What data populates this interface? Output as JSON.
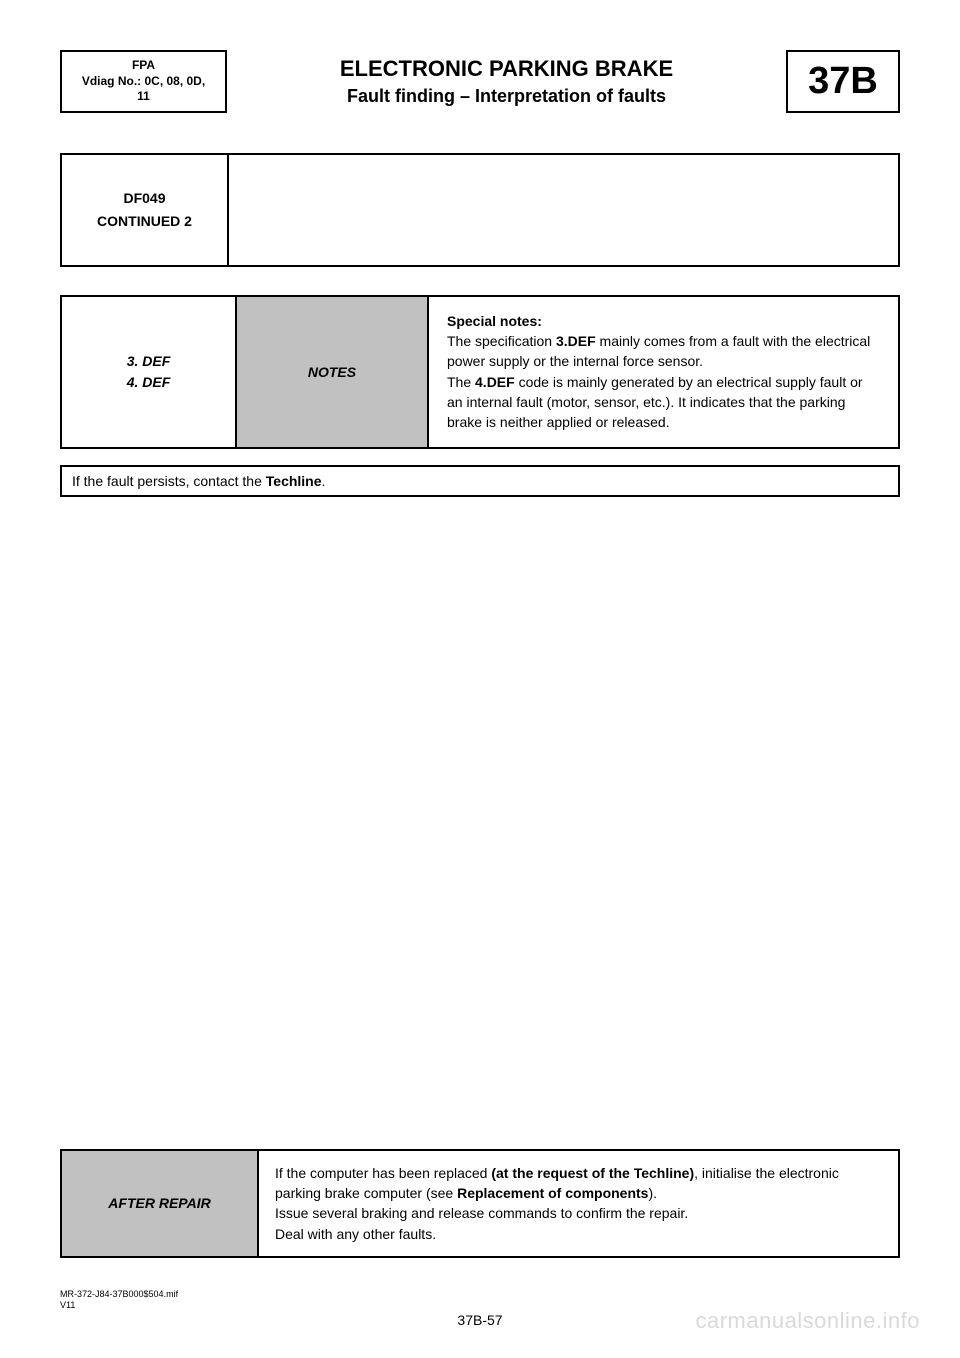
{
  "header": {
    "left_line1": "FPA",
    "left_line2": "Vdiag No.: 0C, 08, 0D,",
    "left_line3": "11",
    "title": "ELECTRONIC PARKING BRAKE",
    "subtitle": "Fault finding – Interpretation of faults",
    "code": "37B"
  },
  "df_box": {
    "line1": "DF049",
    "line2": "CONTINUED 2"
  },
  "notes": {
    "col1_line1": "3. DEF",
    "col1_line2": "4. DEF",
    "col2": "NOTES",
    "sp_title": "Special notes:",
    "p1a": "The specification ",
    "p1b": "3.DEF",
    "p1c": " mainly comes from a fault with the electrical power supply or the internal force sensor.",
    "p2a": "The ",
    "p2b": "4.DEF",
    "p2c": " code is mainly generated by an electrical supply fault or an internal fault (motor, sensor, etc.). It indicates that the parking brake is neither applied or released."
  },
  "persist": {
    "a": "If the fault persists, contact the ",
    "b": "Techline",
    "c": "."
  },
  "after_repair": {
    "label": "AFTER REPAIR",
    "l1a": "If the computer has been replaced ",
    "l1b": "(at the request of the Techline)",
    "l1c": ", initialise the electronic parking brake computer (see ",
    "l1d": "Replacement of components",
    "l1e": ").",
    "l2": "Issue several braking and release commands to confirm the repair.",
    "l3": "Deal with any other faults."
  },
  "footer": {
    "ref1": "MR-372-J84-37B000$504.mif",
    "ref2": "V11",
    "page_num": "37B-57",
    "watermark": "carmanualsonline.info"
  },
  "colors": {
    "grey_fill": "#c1c1c1",
    "watermark": "#d9d9d9",
    "border": "#000000",
    "text": "#000000",
    "bg": "#ffffff"
  }
}
